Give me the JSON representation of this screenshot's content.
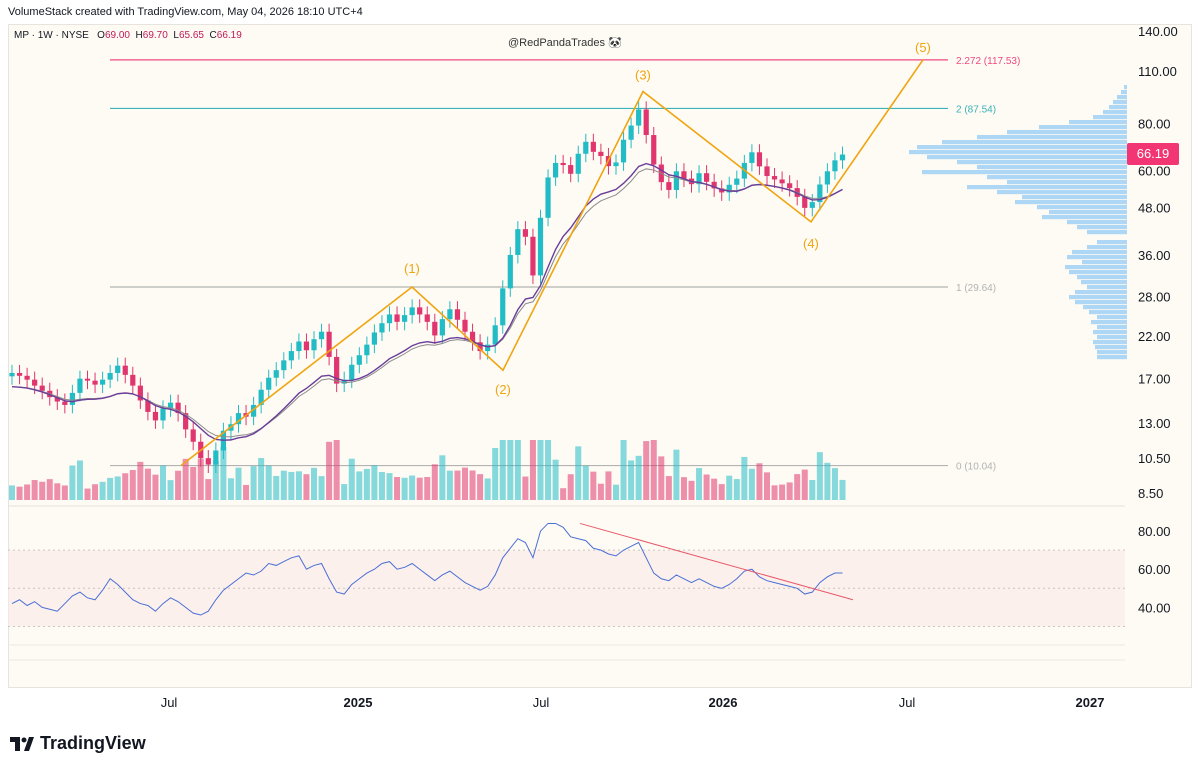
{
  "header": {
    "caption": "VolumeStack created with TradingView.com, May 04, 2026 18:10 UTC+4"
  },
  "legend": {
    "symbol": "MP · 1W · NYSE",
    "o_label": "O",
    "o_val": "69.00",
    "h_label": "H",
    "h_val": "69.70",
    "l_label": "L",
    "l_val": "65.65",
    "c_label": "C",
    "c_val": "66.19"
  },
  "watermark": "@RedPandaTrades 🐼",
  "last_price": "66.19",
  "footer": {
    "brand": "TradingView"
  },
  "colors": {
    "up": "#22bcc6",
    "down": "#e0356f",
    "wave": "#f0a410",
    "fib_top": "#f04a82",
    "fib_2": "#3bb3b8",
    "fib_1": "#b3b3b3",
    "fib_0": "#b3b3b3",
    "ma": "#6a3d9a",
    "rsi": "#4a6fd4",
    "profile": "#9fd0f5",
    "trend": "#e85a6a"
  },
  "chart_data": [
    {
      "type": "candlestick",
      "scale": "log",
      "x_ticks": [
        "Jul",
        "2025",
        "Jul",
        "2026",
        "Jul",
        "2027"
      ],
      "y_ticks": [
        "140.00",
        "110.00",
        "80.00",
        "60.00",
        "48.00",
        "36.00",
        "28.00",
        "22.00",
        "17.00",
        "13.00",
        "10.50",
        "8.50"
      ],
      "fib_levels": [
        {
          "label": "2.272 (117.53)",
          "value": 117.53
        },
        {
          "label": "2 (87.54)",
          "value": 87.54
        },
        {
          "label": "1 (29.64)",
          "value": 29.64
        },
        {
          "label": "0 (10.04)",
          "value": 10.04
        }
      ],
      "wave_labels": [
        "(1)",
        "(2)",
        "(3)",
        "(4)",
        "(5)"
      ],
      "wave_points": [
        {
          "date": "2024-07-08",
          "price": 10.04
        },
        {
          "date": "2025-02-24",
          "price": 29.64
        },
        {
          "date": "2025-05-26",
          "price": 17.9
        },
        {
          "date": "2025-10-13",
          "price": 97.0
        },
        {
          "date": "2026-03-30",
          "price": 44.0
        },
        {
          "date": "2026-07-20",
          "price": 117.53
        }
      ],
      "closes": [
        17.6,
        17.3,
        16.9,
        16.3,
        15.8,
        15.2,
        14.8,
        14.5,
        15.6,
        17.0,
        16.8,
        16.4,
        16.9,
        17.6,
        18.4,
        17.4,
        16.3,
        14.9,
        13.9,
        13.2,
        14.2,
        14.7,
        13.8,
        12.5,
        11.6,
        10.5,
        10.1,
        11.0,
        12.4,
        12.9,
        13.8,
        13.5,
        14.5,
        15.9,
        17.1,
        17.9,
        19.0,
        20.1,
        21.3,
        20.2,
        21.6,
        22.6,
        19.4,
        16.5,
        16.9,
        18.5,
        19.6,
        20.9,
        22.5,
        23.8,
        25.1,
        24.0,
        25.0,
        26.2,
        25.1,
        24.0,
        22.1,
        24.4,
        25.9,
        24.3,
        22.6,
        21.2,
        20.1,
        20.9,
        23.5,
        29.4,
        36.0,
        42.1,
        40.2,
        31.8,
        45.1,
        57.6,
        62.9,
        62.1,
        58.9,
        66.5,
        71.5,
        67.3,
        65.6,
        61.7,
        63.1,
        72.4,
        78.9,
        87.0,
        74.5,
        62.3,
        56.0,
        53.4,
        59.8,
        57.2,
        55.3,
        59.1,
        56.1,
        53.9,
        52.6,
        55.1,
        57.2,
        62.9,
        67.1,
        61.6,
        58.1,
        56.9,
        55.6,
        54.0,
        51.2,
        47.9,
        49.6,
        55.2,
        59.8,
        63.9,
        66.19
      ],
      "volume_scale": "relative",
      "rsi": {
        "y_ticks": [
          "80.00",
          "60.00",
          "40.00"
        ],
        "bands": [
          70,
          50,
          30
        ],
        "values": [
          42,
          44,
          41,
          43,
          40,
          39,
          38,
          42,
          46,
          48,
          45,
          44,
          49,
          55,
          52,
          48,
          44,
          42,
          41,
          38,
          42,
          45,
          43,
          40,
          37,
          36,
          38,
          44,
          49,
          52,
          55,
          58,
          57,
          59,
          63,
          62,
          64,
          66,
          67,
          60,
          62,
          63,
          55,
          48,
          47,
          52,
          55,
          58,
          60,
          63,
          64,
          60,
          61,
          63,
          60,
          57,
          54,
          57,
          59,
          56,
          53,
          51,
          49,
          51,
          57,
          66,
          71,
          76,
          74,
          66,
          80,
          84,
          84,
          82,
          77,
          76,
          75,
          71,
          70,
          68,
          67,
          70,
          72,
          74,
          66,
          58,
          55,
          54,
          57,
          55,
          53,
          55,
          53,
          51,
          50,
          52,
          55,
          59,
          60,
          56,
          54,
          53,
          52,
          51,
          50,
          47,
          48,
          53,
          56,
          58,
          58
        ]
      },
      "rsi_trendline": [
        {
          "date": "2025-08-11",
          "rsi": 84
        },
        {
          "date": "2026-05-11",
          "rsi": 44
        }
      ]
    }
  ]
}
